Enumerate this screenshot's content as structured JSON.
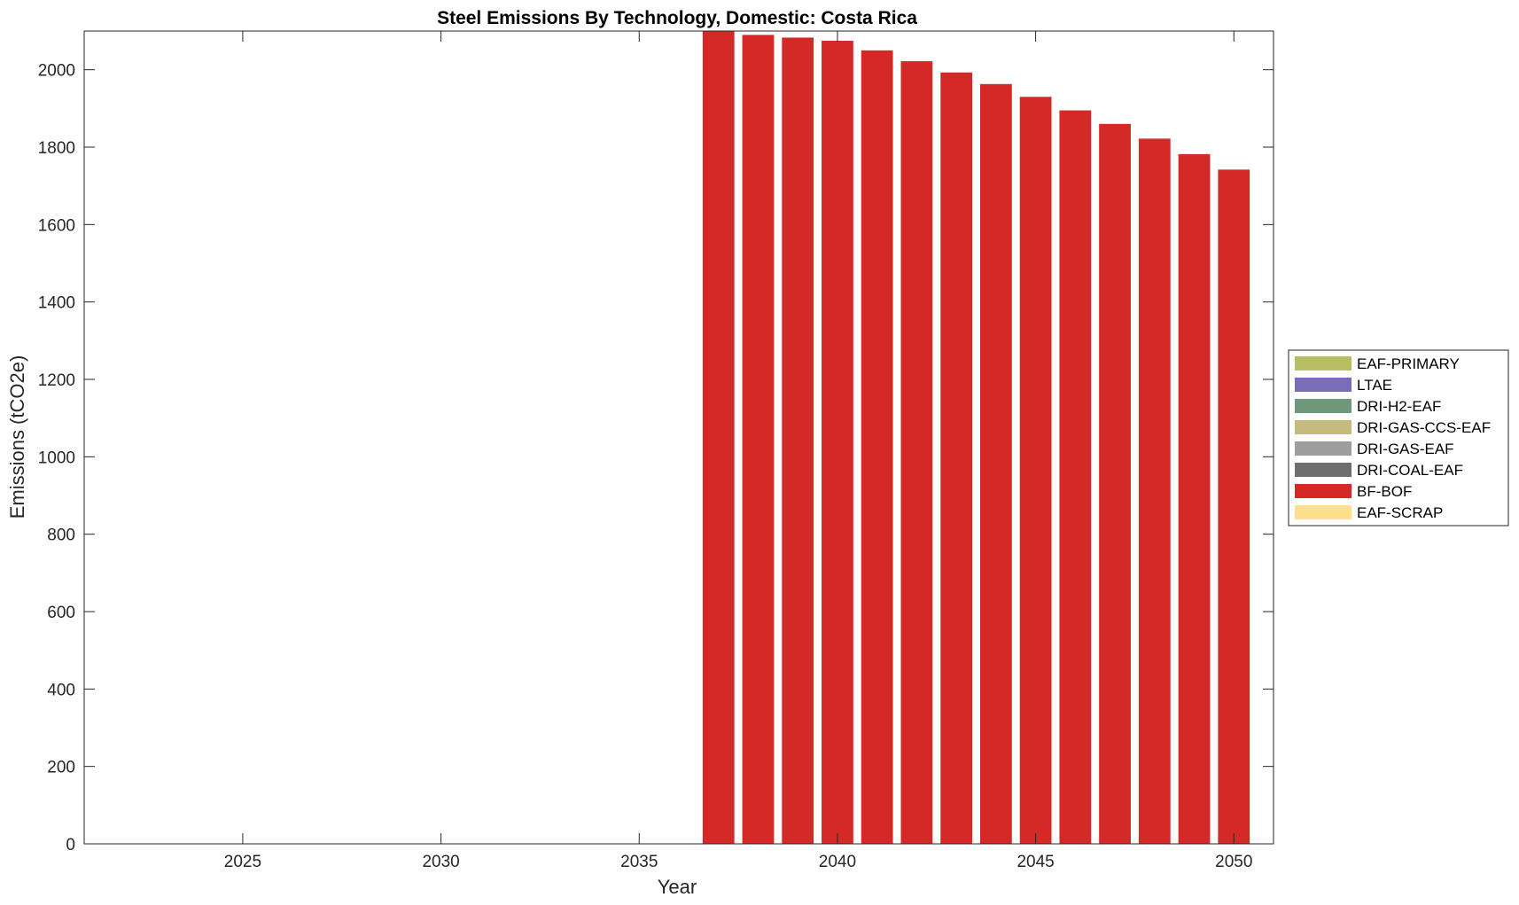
{
  "chart_data": {
    "type": "bar",
    "stacked": true,
    "title": "Steel Emissions By Technology, Domestic: Costa Rica",
    "xlabel": "Year",
    "ylabel": "Emissions (tCO2e)",
    "xlim": [
      2021,
      2051
    ],
    "ylim": [
      0,
      2100
    ],
    "x_ticks": [
      2025,
      2030,
      2035,
      2040,
      2045,
      2050
    ],
    "y_ticks": [
      0,
      200,
      400,
      600,
      800,
      1000,
      1200,
      1400,
      1600,
      1800,
      2000
    ],
    "legend_position": "outside-right",
    "grid": false,
    "x": [
      2022,
      2023,
      2024,
      2025,
      2026,
      2027,
      2028,
      2029,
      2030,
      2031,
      2032,
      2033,
      2034,
      2035,
      2036,
      2037,
      2038,
      2039,
      2040,
      2041,
      2042,
      2043,
      2044,
      2045,
      2046,
      2047,
      2048,
      2049,
      2050
    ],
    "series": [
      {
        "name": "EAF-PRIMARY",
        "color": "#b8bf63",
        "values": [
          0,
          0,
          0,
          0,
          0,
          0,
          0,
          0,
          0,
          0,
          0,
          0,
          0,
          0,
          0,
          0,
          0,
          0,
          0,
          0,
          0,
          0,
          0,
          0,
          0,
          0,
          0,
          0,
          0
        ]
      },
      {
        "name": "LTAE",
        "color": "#7b6cbb",
        "values": [
          0,
          0,
          0,
          0,
          0,
          0,
          0,
          0,
          0,
          0,
          0,
          0,
          0,
          0,
          0,
          0,
          0,
          0,
          0,
          0,
          0,
          0,
          0,
          0,
          0,
          0,
          0,
          0,
          0
        ]
      },
      {
        "name": "DRI-H2-EAF",
        "color": "#6f977a",
        "values": [
          0,
          0,
          0,
          0,
          0,
          0,
          0,
          0,
          0,
          0,
          0,
          0,
          0,
          0,
          0,
          0,
          0,
          0,
          0,
          0,
          0,
          0,
          0,
          0,
          0,
          0,
          0,
          0,
          0
        ]
      },
      {
        "name": "DRI-GAS-CCS-EAF",
        "color": "#c4bb7d",
        "values": [
          0,
          0,
          0,
          0,
          0,
          0,
          0,
          0,
          0,
          0,
          0,
          0,
          0,
          0,
          0,
          0,
          0,
          0,
          0,
          0,
          0,
          0,
          0,
          0,
          0,
          0,
          0,
          0,
          0
        ]
      },
      {
        "name": "DRI-GAS-EAF",
        "color": "#9e9e9e",
        "values": [
          0,
          0,
          0,
          0,
          0,
          0,
          0,
          0,
          0,
          0,
          0,
          0,
          0,
          0,
          0,
          0,
          0,
          0,
          0,
          0,
          0,
          0,
          0,
          0,
          0,
          0,
          0,
          0,
          0
        ]
      },
      {
        "name": "DRI-COAL-EAF",
        "color": "#6e6e6e",
        "values": [
          0,
          0,
          0,
          0,
          0,
          0,
          0,
          0,
          0,
          0,
          0,
          0,
          0,
          0,
          0,
          0,
          0,
          0,
          0,
          0,
          0,
          0,
          0,
          0,
          0,
          0,
          0,
          0,
          0
        ]
      },
      {
        "name": "BF-BOF",
        "color": "#d42a27",
        "values": [
          0,
          0,
          0,
          0,
          0,
          0,
          0,
          0,
          0,
          0,
          0,
          0,
          0,
          0,
          0,
          2100,
          2090,
          2083,
          2075,
          2050,
          2022,
          1993,
          1963,
          1930,
          1895,
          1860,
          1822,
          1782,
          1742
        ]
      },
      {
        "name": "EAF-SCRAP",
        "color": "#fde08e",
        "values": [
          0,
          0,
          0,
          0,
          0,
          0,
          0,
          0,
          0,
          0,
          0,
          0,
          0,
          0,
          0,
          0,
          0,
          0,
          0,
          0,
          0,
          0,
          0,
          0,
          0,
          0,
          0,
          0,
          0
        ]
      }
    ]
  }
}
